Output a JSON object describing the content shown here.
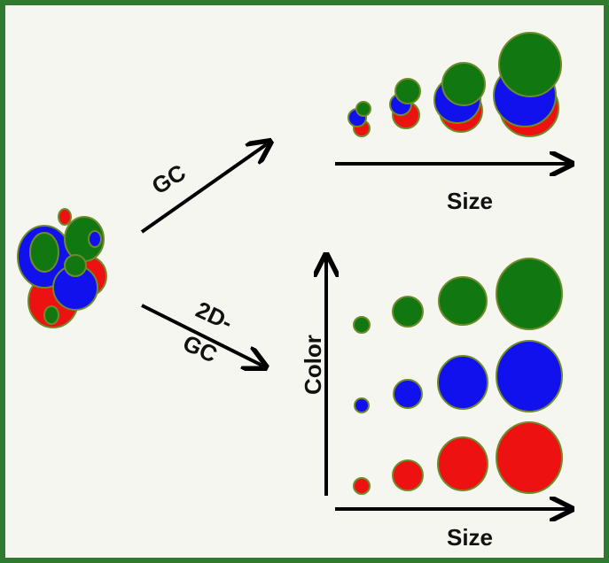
{
  "arrows": [
    {
      "label": "GC"
    },
    {
      "label_lines": [
        "2D-",
        "GC"
      ]
    }
  ],
  "gc_plot": {
    "x_label": "Size"
  },
  "two_d_plot": {
    "y_label": "Color",
    "x_label": "Size"
  }
}
